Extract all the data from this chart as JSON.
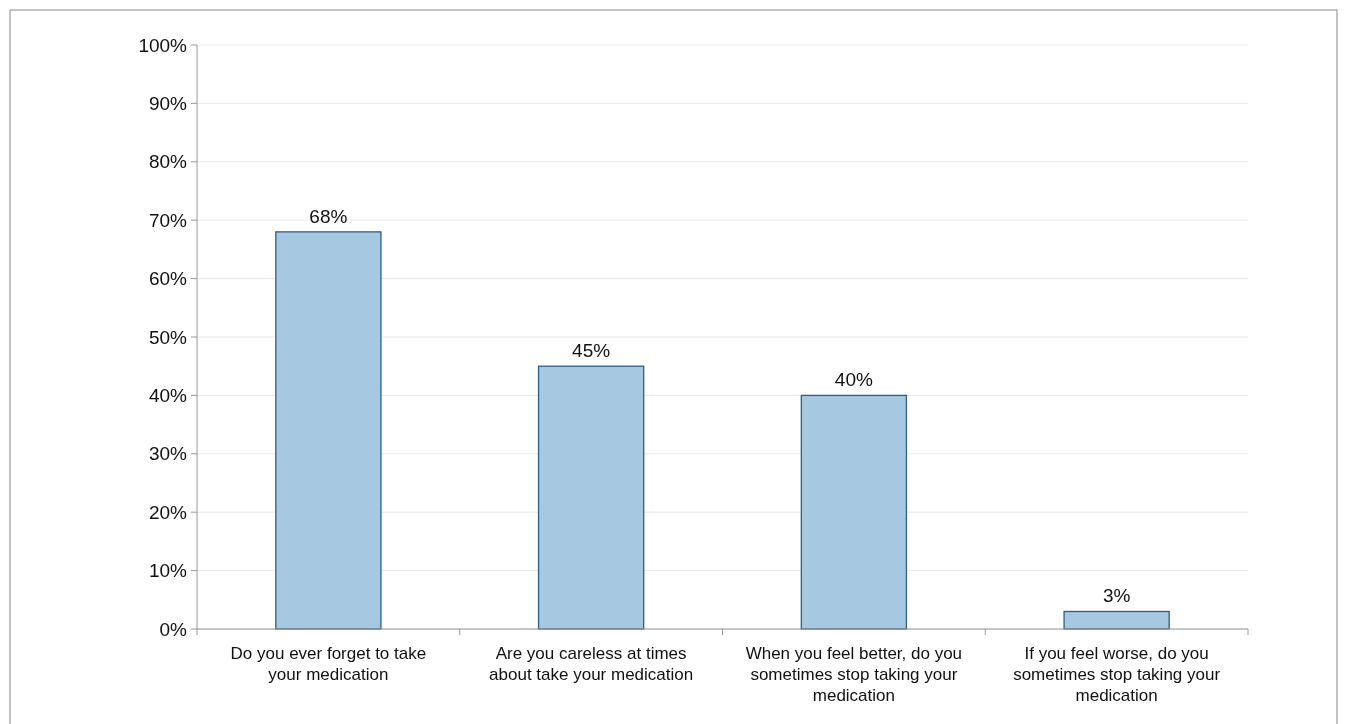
{
  "chart_data": {
    "type": "bar",
    "categories": [
      "Do you ever forget to take your medication",
      "Are you careless at times about take your medication",
      "When you feel better, do you sometimes stop taking your medication",
      "If you feel worse, do you sometimes stop taking your medication"
    ],
    "values": [
      68,
      45,
      40,
      3
    ],
    "value_labels": [
      "68%",
      "45%",
      "40%",
      "3%"
    ],
    "color": "#a6c8e1",
    "ylim": [
      0,
      100
    ],
    "yticks": [
      {
        "value": 0,
        "label": "0%"
      },
      {
        "value": 10,
        "label": "10%"
      },
      {
        "value": 20,
        "label": "20%"
      },
      {
        "value": 30,
        "label": "30%"
      },
      {
        "value": 40,
        "label": "40%"
      },
      {
        "value": 50,
        "label": "50%"
      },
      {
        "value": 60,
        "label": "60%"
      },
      {
        "value": 70,
        "label": "70%"
      },
      {
        "value": 80,
        "label": "80%"
      },
      {
        "value": 90,
        "label": "90%"
      },
      {
        "value": 100,
        "label": "100%"
      }
    ],
    "grid": "y"
  }
}
